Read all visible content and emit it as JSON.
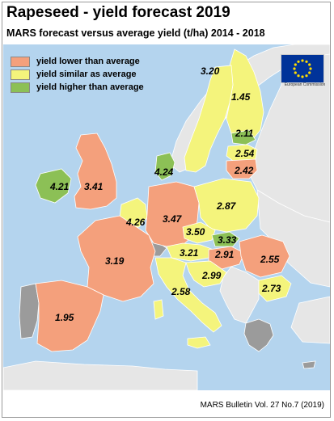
{
  "title": "Rapeseed - yield forecast 2019",
  "subtitle": "MARS forecast versus average yield (t/ha) 2014 - 2018",
  "legend": [
    {
      "label": "yield lower than average",
      "color": "#f4a07c"
    },
    {
      "label": "yield similar as average",
      "color": "#f4f47c"
    },
    {
      "label": "yield higher than average",
      "color": "#8cc056"
    }
  ],
  "logo": {
    "icon": "eu-flag-icon",
    "text": "European Commission"
  },
  "regions": {
    "finland": "1.45",
    "sweden": "3.20",
    "estonia": "2.11",
    "latvia": "2.54",
    "lithuania": "2.42",
    "denmark": "4.24",
    "ireland": "4.21",
    "uk": "3.41",
    "netherlands_belgium": "4.26",
    "germany": "3.47",
    "poland": "2.87",
    "czechia": "3.50",
    "slovakia": "3.33",
    "austria": "3.21",
    "hungary": "2.91",
    "romania": "2.55",
    "croatia": "2.99",
    "bulgaria": "2.73",
    "france": "3.19",
    "italy": "2.58",
    "spain": "1.95"
  },
  "colors": {
    "sea": "#b4d4ee",
    "non_eu": "#e6e6e6",
    "no_data": "#9b9b9b",
    "border": "#ffffff"
  },
  "footer": "MARS Bulletin Vol. 27 No.7 (2019)"
}
